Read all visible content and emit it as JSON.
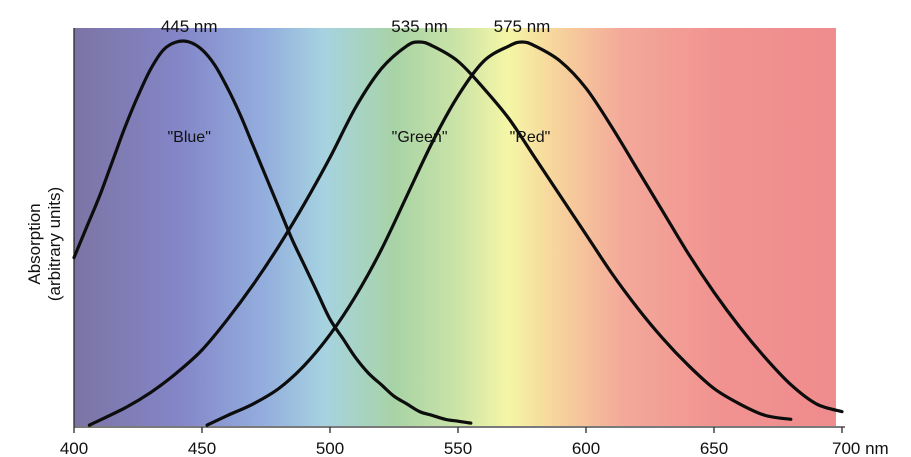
{
  "chart_data": {
    "type": "line",
    "title": "",
    "xlabel": "",
    "ylabel": "Absorption",
    "ylabel_sub": "(arbitrary units)",
    "xlim": [
      400,
      700
    ],
    "ylim": [
      0,
      1
    ],
    "x_ticks": [
      "400",
      "450",
      "500",
      "550",
      "600",
      "650",
      "700 nm"
    ],
    "grid": false,
    "legend": "none",
    "background": "visible spectrum gradient (violet to red)",
    "series": [
      {
        "label": "\"Blue\"",
        "peak_label": "445 nm",
        "peak": 445,
        "color": "#0d0d0d",
        "x": [
          400,
          405,
          410,
          415,
          420,
          425,
          430,
          435,
          440,
          445,
          450,
          455,
          460,
          465,
          470,
          475,
          480,
          485,
          490,
          495,
          500,
          505,
          510,
          515,
          520,
          525,
          530,
          535,
          540,
          545,
          550,
          555
        ],
        "y": [
          0.44,
          0.52,
          0.6,
          0.69,
          0.78,
          0.86,
          0.93,
          0.98,
          1.0,
          1.0,
          0.98,
          0.94,
          0.88,
          0.81,
          0.73,
          0.65,
          0.57,
          0.49,
          0.42,
          0.35,
          0.28,
          0.23,
          0.18,
          0.14,
          0.11,
          0.08,
          0.06,
          0.04,
          0.03,
          0.02,
          0.015,
          0.01
        ]
      },
      {
        "label": "\"Green\"",
        "peak_label": "535 nm",
        "peak": 535,
        "color": "#0d0d0d",
        "x": [
          406,
          420,
          430,
          440,
          450,
          460,
          470,
          480,
          490,
          500,
          510,
          520,
          530,
          535,
          540,
          550,
          560,
          570,
          580,
          590,
          600,
          610,
          620,
          630,
          640,
          650,
          660,
          670,
          680
        ],
        "y": [
          0.005,
          0.05,
          0.09,
          0.14,
          0.2,
          0.28,
          0.37,
          0.47,
          0.58,
          0.7,
          0.83,
          0.93,
          0.99,
          1.0,
          0.99,
          0.95,
          0.88,
          0.8,
          0.7,
          0.6,
          0.5,
          0.4,
          0.31,
          0.23,
          0.16,
          0.1,
          0.06,
          0.03,
          0.02
        ]
      },
      {
        "label": "\"Red\"",
        "peak_label": "575 nm",
        "peak": 575,
        "color": "#0d0d0d",
        "x": [
          452,
          460,
          470,
          480,
          490,
          500,
          510,
          520,
          530,
          540,
          550,
          560,
          570,
          575,
          580,
          590,
          600,
          610,
          620,
          630,
          640,
          650,
          660,
          670,
          680,
          690,
          700
        ],
        "y": [
          0.005,
          0.03,
          0.06,
          0.1,
          0.16,
          0.24,
          0.34,
          0.46,
          0.6,
          0.74,
          0.86,
          0.95,
          0.99,
          1.0,
          0.99,
          0.95,
          0.88,
          0.78,
          0.67,
          0.56,
          0.45,
          0.35,
          0.26,
          0.18,
          0.11,
          0.06,
          0.04
        ]
      }
    ]
  }
}
